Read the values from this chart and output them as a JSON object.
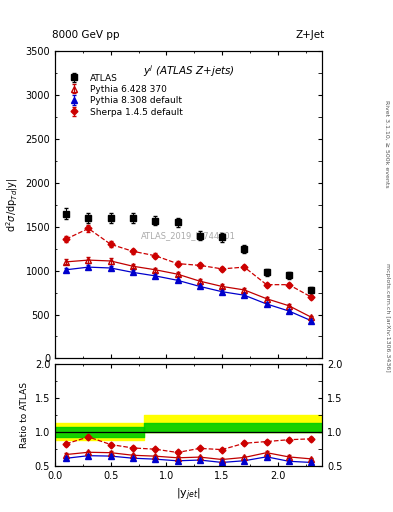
{
  "title_left": "8000 GeV pp",
  "title_right": "Z+Jet",
  "ylabel_main": "d$^{2}\\sigma$/dp$_{Td}$|y|",
  "ylabel_ratio": "Ratio to ATLAS",
  "xlabel": "|y$_{jet}$|",
  "annotation": "y$^{j}$ (ATLAS Z+jets)",
  "watermark": "ATLAS_2019_I1744201",
  "ylim_main": [
    0,
    3500
  ],
  "ylim_ratio": [
    0.5,
    2.0
  ],
  "xlim": [
    0,
    2.4
  ],
  "atlas_x": [
    0.1,
    0.3,
    0.5,
    0.7,
    0.9,
    1.1,
    1.3,
    1.5,
    1.7,
    1.9,
    2.1,
    2.3
  ],
  "atlas_y": [
    1650,
    1600,
    1600,
    1600,
    1570,
    1550,
    1400,
    1380,
    1250,
    980,
    950,
    780
  ],
  "atlas_yerr": [
    60,
    55,
    55,
    55,
    55,
    55,
    50,
    50,
    45,
    40,
    40,
    35
  ],
  "pythia6_x": [
    0.1,
    0.3,
    0.5,
    0.7,
    0.9,
    1.1,
    1.3,
    1.5,
    1.7,
    1.9,
    2.1,
    2.3
  ],
  "pythia6_y": [
    1100,
    1120,
    1110,
    1050,
    1010,
    960,
    880,
    820,
    780,
    680,
    600,
    470
  ],
  "pythia6_yerr": [
    30,
    30,
    30,
    25,
    25,
    25,
    22,
    22,
    20,
    18,
    18,
    15
  ],
  "pythia8_x": [
    0.1,
    0.3,
    0.5,
    0.7,
    0.9,
    1.1,
    1.3,
    1.5,
    1.7,
    1.9,
    2.1,
    2.3
  ],
  "pythia8_y": [
    1010,
    1040,
    1030,
    980,
    940,
    890,
    820,
    760,
    720,
    620,
    540,
    430
  ],
  "pythia8_yerr": [
    25,
    25,
    25,
    22,
    22,
    20,
    18,
    18,
    16,
    15,
    14,
    12
  ],
  "sherpa_x": [
    0.1,
    0.3,
    0.5,
    0.7,
    0.9,
    1.1,
    1.3,
    1.5,
    1.7,
    1.9,
    2.1,
    2.3
  ],
  "sherpa_y": [
    1360,
    1480,
    1300,
    1220,
    1170,
    1080,
    1060,
    1020,
    1040,
    840,
    840,
    700
  ],
  "sherpa_yerr": [
    35,
    38,
    32,
    30,
    28,
    26,
    26,
    25,
    25,
    22,
    22,
    18
  ],
  "band_yellow_edges": [
    0.0,
    0.8,
    2.4
  ],
  "band_yellow_lo1": 0.88,
  "band_yellow_hi1": 1.13,
  "band_yellow_lo2": 1.0,
  "band_yellow_hi2": 1.25,
  "band_green_edges": [
    0.0,
    0.8,
    2.4
  ],
  "band_green_lo1": 0.93,
  "band_green_hi1": 1.07,
  "band_green_lo2": 1.0,
  "band_green_hi2": 1.13,
  "ratio_pythia6": [
    0.667,
    0.7,
    0.694,
    0.656,
    0.643,
    0.619,
    0.629,
    0.594,
    0.624,
    0.694,
    0.632,
    0.603
  ],
  "ratio_pythia6_err": [
    0.025,
    0.025,
    0.025,
    0.022,
    0.022,
    0.02,
    0.022,
    0.02,
    0.02,
    0.025,
    0.022,
    0.02
  ],
  "ratio_pythia8": [
    0.612,
    0.65,
    0.644,
    0.613,
    0.599,
    0.575,
    0.586,
    0.551,
    0.576,
    0.633,
    0.568,
    0.551
  ],
  "ratio_pythia8_err": [
    0.022,
    0.022,
    0.022,
    0.02,
    0.02,
    0.018,
    0.018,
    0.016,
    0.016,
    0.02,
    0.018,
    0.016
  ],
  "ratio_sherpa": [
    0.824,
    0.925,
    0.813,
    0.763,
    0.745,
    0.697,
    0.757,
    0.739,
    0.832,
    0.857,
    0.884,
    0.897
  ],
  "ratio_sherpa_err": [
    0.03,
    0.032,
    0.028,
    0.026,
    0.024,
    0.022,
    0.026,
    0.024,
    0.026,
    0.03,
    0.03,
    0.028
  ],
  "color_pythia6": "#c00000",
  "color_pythia8": "#0000cc",
  "color_sherpa": "#cc0000",
  "color_atlas": "black",
  "color_yellow": "#ffff00",
  "color_green": "#00cc00"
}
